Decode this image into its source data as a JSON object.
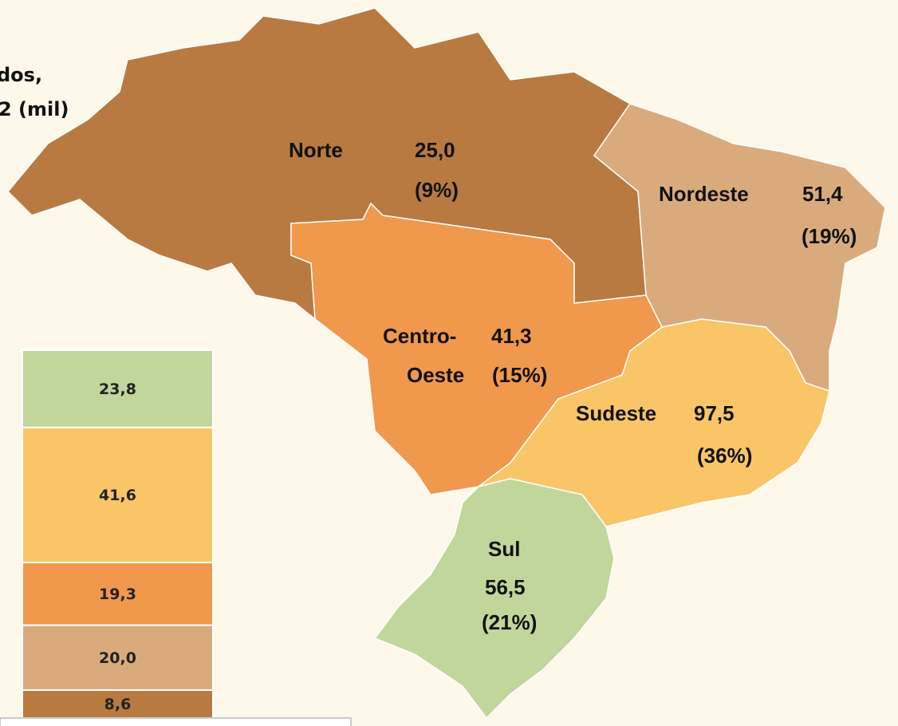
{
  "title_lines": [
    "dos,",
    "2 (mil)"
  ],
  "map": {
    "regions": [
      {
        "name_lines": [
          "Norte"
        ],
        "value": "25,0",
        "share": "(9%)",
        "color": "#b87a41"
      },
      {
        "name_lines": [
          "Nordeste"
        ],
        "value": "51,4",
        "share": "(19%)",
        "color": "#d9ab7c"
      },
      {
        "name_lines": [
          "Centro-",
          "Oeste"
        ],
        "value": "41,3",
        "share": "(15%)",
        "color": "#f0984c"
      },
      {
        "name_lines": [
          "Sudeste"
        ],
        "value": "97,5",
        "share": "(36%)",
        "color": "#f9c566"
      },
      {
        "name_lines": [
          "Sul"
        ],
        "value": "56,5",
        "share": "(21%)",
        "color": "#c1d69a"
      }
    ]
  },
  "chart_data": {
    "type": "bar",
    "stacked": true,
    "series": [
      {
        "color": "#b87a41",
        "values": [
          8.6
        ],
        "value_labels": [
          "8,6"
        ]
      },
      {
        "color": "#d9ab7c",
        "values": [
          20.0
        ],
        "value_labels": [
          "20,0"
        ]
      },
      {
        "color": "#f0984c",
        "values": [
          19.3
        ],
        "value_labels": [
          "19,3"
        ]
      },
      {
        "color": "#f9c566",
        "values": [
          41.6
        ],
        "value_labels": [
          "41,6"
        ]
      },
      {
        "color": "#c1d69a",
        "values": [
          23.8
        ],
        "value_labels": [
          "23,8"
        ]
      }
    ]
  }
}
